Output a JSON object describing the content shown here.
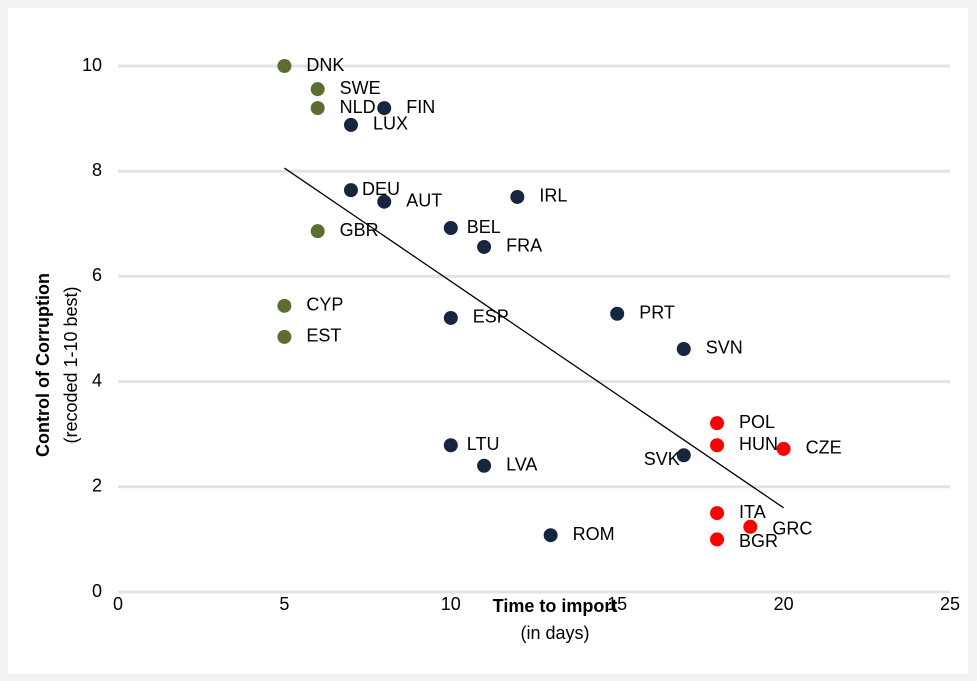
{
  "chart_data": {
    "type": "scatter",
    "x_label": "Time to import",
    "x_sublabel": "(in days)",
    "y_label": "Control of Corruption",
    "y_sublabel": "(recoded 1-10 best)",
    "xlim": [
      0,
      25
    ],
    "xticks": [
      0,
      5,
      10,
      15,
      20,
      25
    ],
    "ylim": [
      0,
      10
    ],
    "yticks": [
      0,
      2,
      4,
      6,
      8,
      10
    ],
    "grid": true,
    "series": [
      {
        "color": "#5b6e2f",
        "labels": [
          "DNK",
          "SWE",
          "NLD",
          "GBR",
          "CYP",
          "EST"
        ],
        "x": [
          5,
          6,
          6,
          6,
          5,
          5
        ],
        "values": [
          10,
          9.56,
          9.2,
          6.86,
          5.44,
          4.85
        ]
      },
      {
        "color": "#17263f",
        "labels": [
          "FIN",
          "LUX",
          "DEU",
          "AUT",
          "IRL",
          "BEL",
          "FRA",
          "ESP",
          "PRT",
          "SVN",
          "SVK",
          "LTU",
          "LVA",
          "ROM"
        ],
        "x": [
          8,
          7,
          7,
          8,
          12,
          10,
          11,
          10,
          15,
          17,
          17,
          10,
          11,
          13
        ],
        "values": [
          9.2,
          8.88,
          7.64,
          7.42,
          7.51,
          6.92,
          6.56,
          5.21,
          5.29,
          4.62,
          2.6,
          2.79,
          2.4,
          1.08
        ]
      },
      {
        "color": "#ff0000",
        "labels": [
          "POL",
          "HUN",
          "CZE",
          "ITA",
          "GRC",
          "BGR"
        ],
        "x": [
          18,
          18,
          20,
          18,
          19,
          18
        ],
        "values": [
          3.21,
          2.79,
          2.72,
          1.5,
          1.24,
          1.0
        ]
      }
    ],
    "trendline": {
      "color": "#000000",
      "x": [
        5,
        20
      ],
      "values": [
        8.06,
        1.6
      ]
    }
  }
}
